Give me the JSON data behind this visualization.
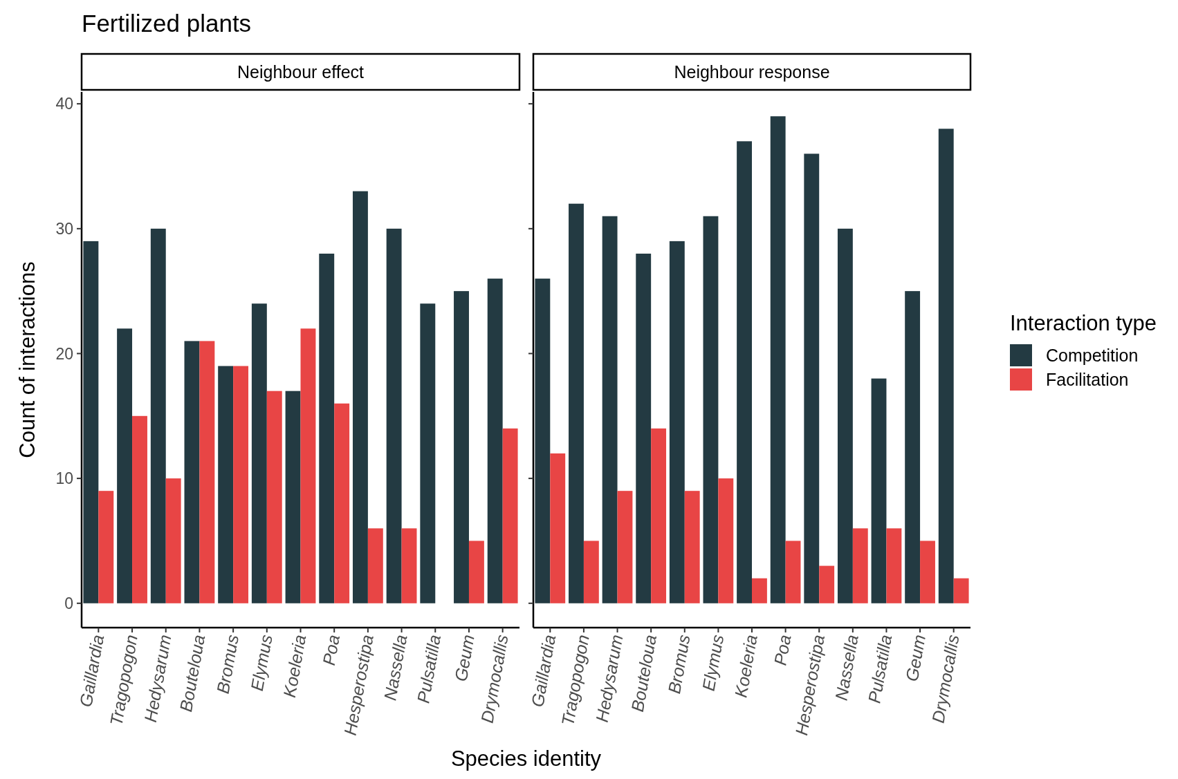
{
  "chart_data": [
    {
      "type": "bar",
      "title": "Fertilized plants",
      "subtitle": "Neighbour effect",
      "xlabel": "Species identity",
      "ylabel": "Count of interactions",
      "categories": [
        "Gaillardia",
        "Tragopogon",
        "Hedysarum",
        "Bouteloua",
        "Bromus",
        "Elymus",
        "Koeleria",
        "Poa",
        "Hesperostipa",
        "Nassella",
        "Pulsatilla",
        "Geum",
        "Drymocallis"
      ],
      "series": [
        {
          "color": "#233a42",
          "values": [
            29,
            22,
            30,
            21,
            19,
            24,
            17,
            28,
            33,
            30,
            24,
            25,
            26
          ]
        },
        {
          "color": "#e84545",
          "values": [
            9,
            15,
            10,
            21,
            19,
            17,
            22,
            16,
            6,
            6,
            null,
            5,
            14
          ]
        }
      ],
      "ylim": [
        -1.95,
        40.95
      ],
      "yticks": [
        0,
        10,
        20,
        30,
        40
      ],
      "grid": false,
      "legend": false
    },
    {
      "type": "bar",
      "subtitle": "Neighbour response",
      "legend_title": "Interaction type",
      "categories": [
        "Gaillardia",
        "Tragopogon",
        "Hedysarum",
        "Bouteloua",
        "Bromus",
        "Elymus",
        "Koeleria",
        "Poa",
        "Hesperostipa",
        "Nassella",
        "Pulsatilla",
        "Geum",
        "Drymocallis"
      ],
      "series": [
        {
          "name": "Competition",
          "color": "#233a42",
          "values": [
            26,
            32,
            31,
            28,
            29,
            31,
            37,
            39,
            36,
            30,
            18,
            25,
            38
          ]
        },
        {
          "name": "Facilitation",
          "color": "#e84545",
          "values": [
            12,
            5,
            9,
            14,
            9,
            10,
            2,
            5,
            3,
            6,
            6,
            5,
            2
          ]
        }
      ],
      "ylim": [
        -1.95,
        40.95
      ],
      "yticks": [
        0,
        10,
        20,
        30,
        40
      ],
      "grid": false,
      "legend": "right",
      "tick_labels": "x"
    }
  ]
}
